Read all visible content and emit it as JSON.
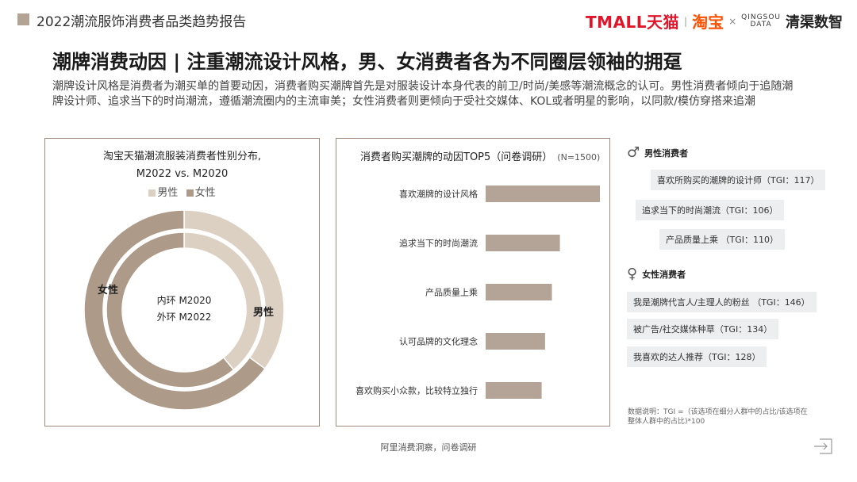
{
  "header": {
    "title": "2022潮流服饰消费者品类趋势报告",
    "logos": {
      "tmall": "TMALL天猫",
      "sep": "|",
      "taobao": "淘宝",
      "x": "×",
      "qingsou_top": "QINGSOU",
      "qingsou_bottom": "DATA",
      "qcsz": "清渠数智"
    }
  },
  "main_title": "潮牌消费动因 | 注重潮流设计风格，男、女消费者各为不同圈层领袖的拥趸",
  "subtitle": "潮牌设计风格是消费者为潮买单的首要动因，消费者购买潮牌首先是对服装设计本身代表的前卫/时尚/美感等潮流概念的认可。男性消费者倾向于追随潮牌设计师、追求当下的时尚潮流，遵循潮流圈内的主流审美；女性消费者则更倾向于受社交媒体、KOL或者明星的影响，以同款/模仿穿搭来追潮",
  "left_panel": {
    "title_line1": "淘宝天猫潮流服装消费者性别分布,",
    "title_line2": "M2022 vs. M2020",
    "legend_male": "男性",
    "legend_female": "女性",
    "center_line1": "内环 M2020",
    "center_line2": "外环 M2022",
    "label_female": "女性",
    "label_male": "男性"
  },
  "mid_panel": {
    "title": "消费者购买潮牌的动因TOP5（问卷调研）",
    "note": "(N=1500)"
  },
  "colors": {
    "male": "#dcd0c2",
    "female": "#ad9a88",
    "bar": "#b3a497",
    "border": "#a08b7a",
    "accent_square": "#b3a394"
  },
  "chart_data": [
    {
      "type": "pie",
      "title": "淘宝天猫潮流服装消费者性别分布, M2022 vs. M2020",
      "series": [
        {
          "name": "内环 M2020",
          "categories": [
            "男性",
            "女性"
          ],
          "values": [
            39,
            61
          ]
        },
        {
          "name": "外环 M2022",
          "categories": [
            "男性",
            "女性"
          ],
          "values": [
            35,
            65
          ]
        }
      ]
    },
    {
      "type": "bar",
      "orientation": "horizontal",
      "title": "消费者购买潮牌的动因TOP5（问卷调研）",
      "categories": [
        "喜欢潮牌的设计风格",
        "追求当下的时尚潮流",
        "产品质量上乘",
        "认可品牌的文化理念",
        "喜欢购买小众款，比较特立独行"
      ],
      "values": [
        100,
        65,
        58,
        52,
        49
      ],
      "xlim": [
        0,
        100
      ]
    }
  ],
  "male_section": {
    "title": "男性消费者",
    "tags": [
      "喜欢所购买的潮牌的设计师（TGI：117）",
      "追求当下的时尚潮流（TGI：106）",
      "产品质量上乘 （TGI：110）"
    ]
  },
  "female_section": {
    "title": "女性消费者",
    "tags": [
      "我是潮牌代言人/主理人的粉丝 （TGI：146）",
      "被广告/社交媒体种草（TGI：134）",
      "我喜欢的达人推荐（TGI：128）"
    ]
  },
  "footnote": "数据说明：TGI =（该选项在细分人群中的占比/该选项在整体人群中的占比)*100",
  "source": "阿里消费洞察，问卷调研"
}
